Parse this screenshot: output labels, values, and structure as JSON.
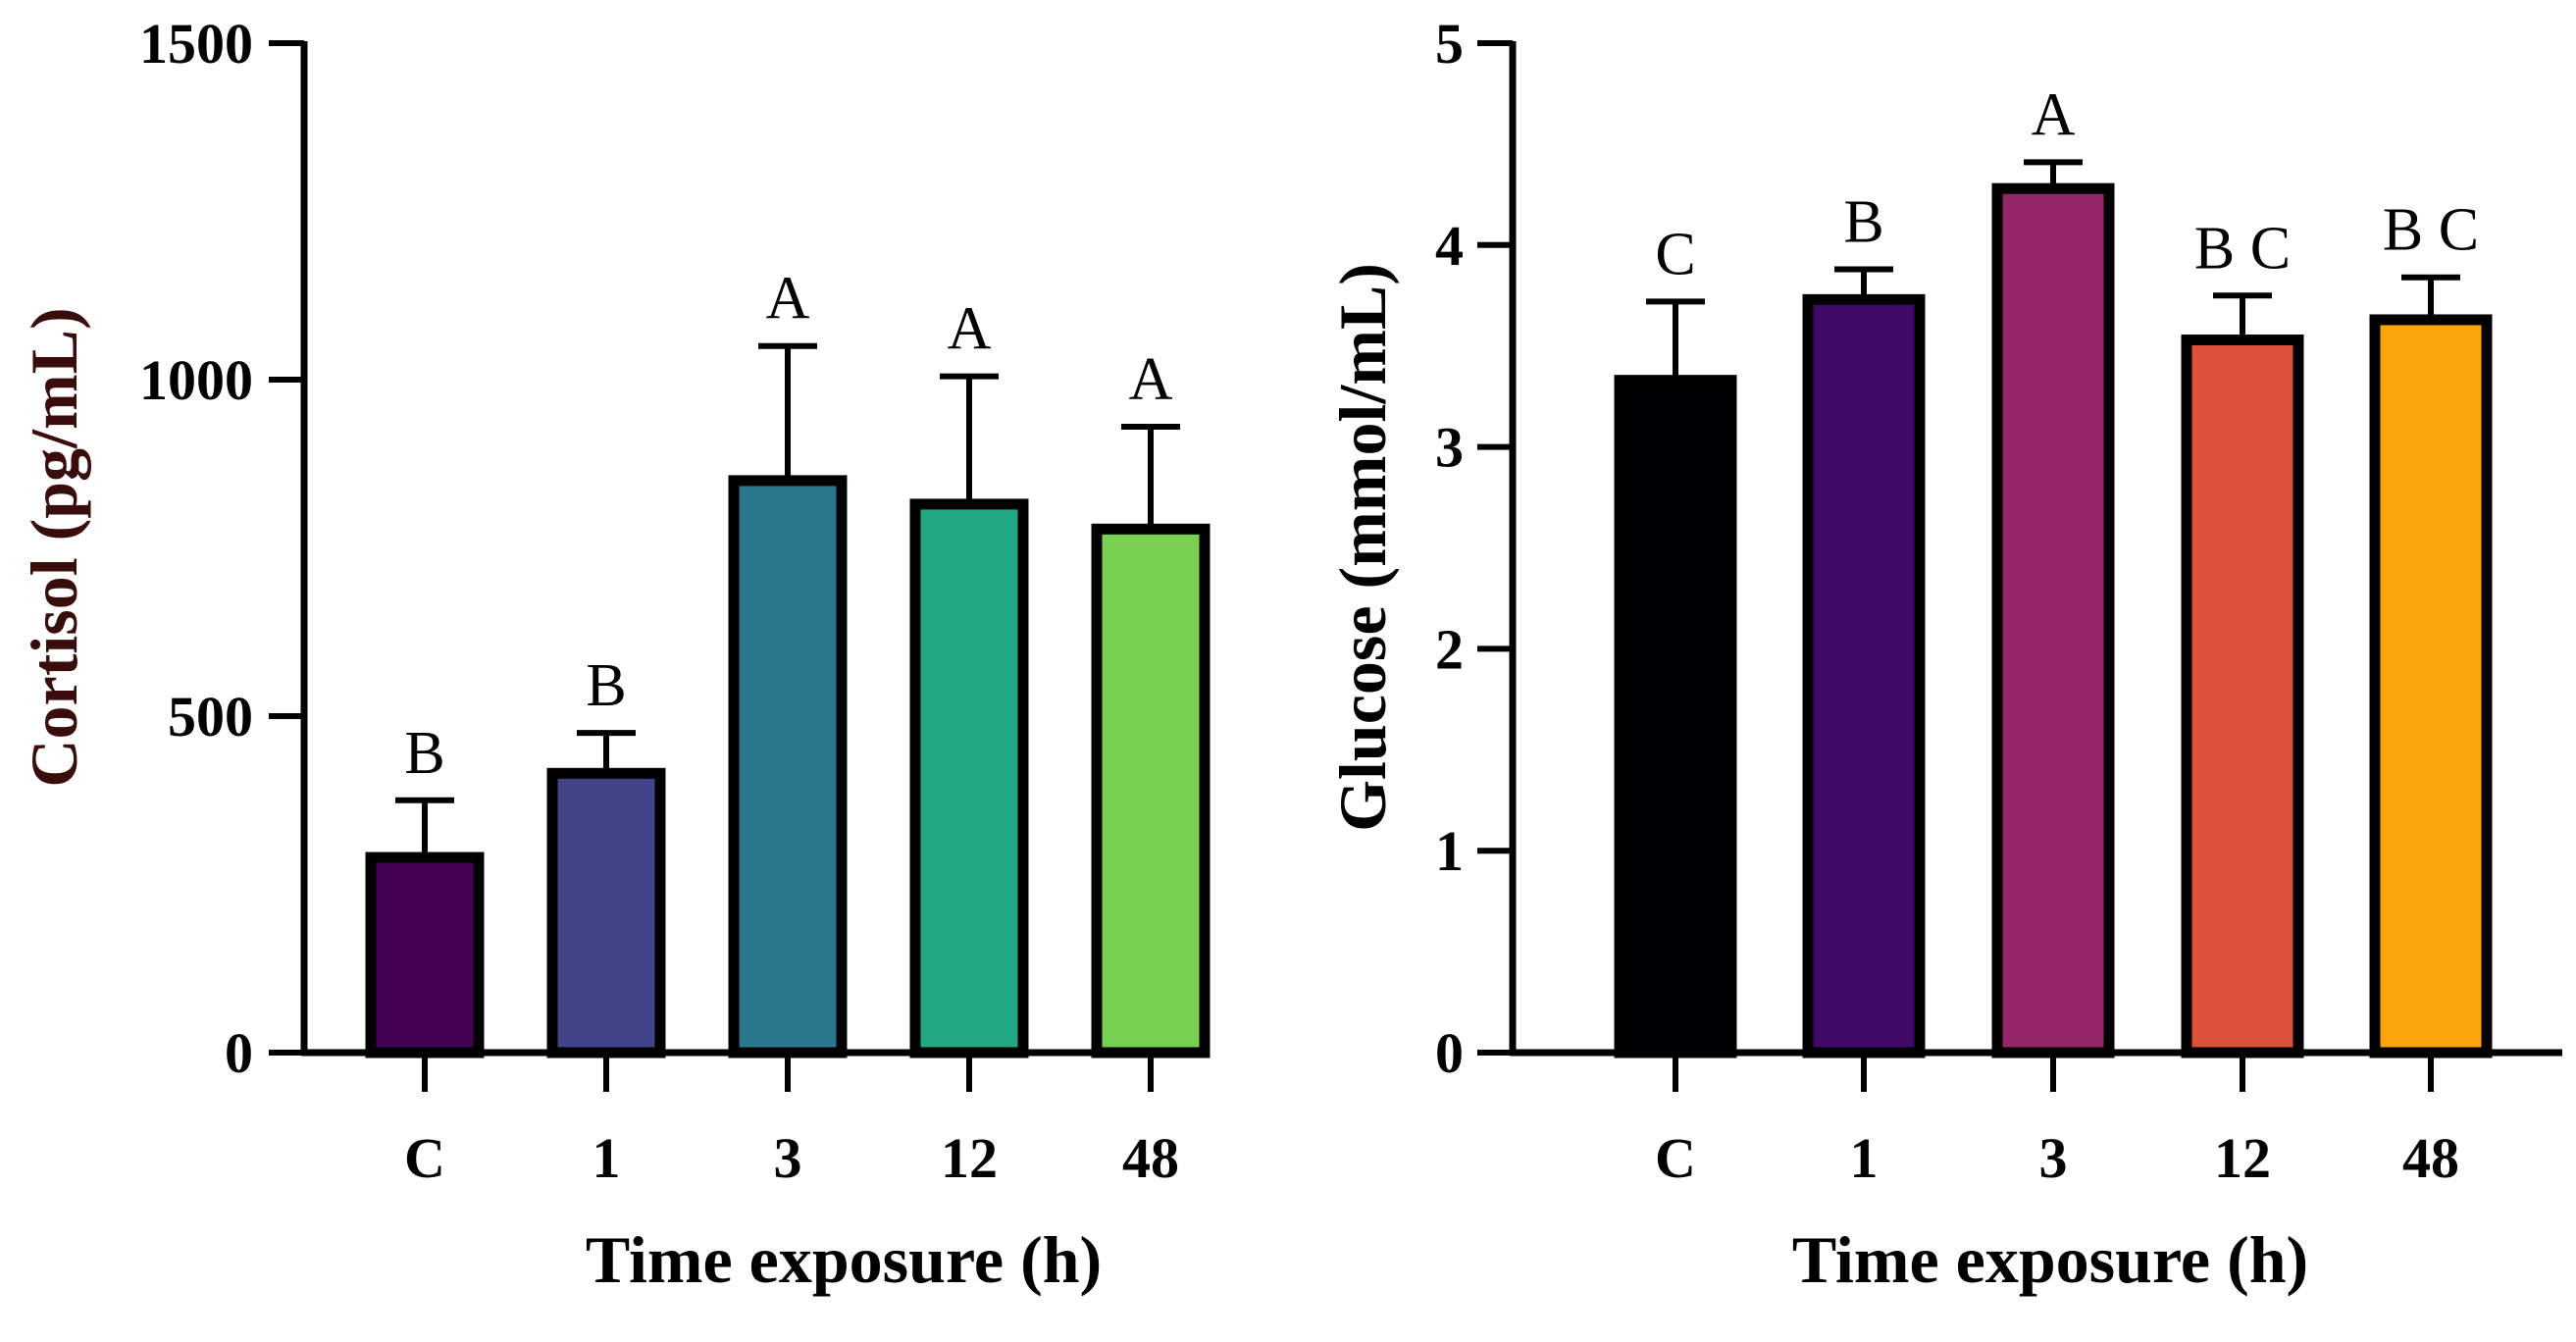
{
  "chart_data": [
    {
      "type": "bar",
      "title": "",
      "xlabel": "Time exposure (h)",
      "ylabel": "Cortisol (pg/mL)",
      "ylabel_color": "#3a0d0d",
      "categories": [
        "C",
        "1",
        "3",
        "12",
        "48"
      ],
      "values": [
        290,
        415,
        850,
        815,
        778
      ],
      "error_upper": [
        375,
        475,
        1050,
        1005,
        930
      ],
      "significance": [
        "B",
        "B",
        "A",
        "A",
        "A"
      ],
      "colors": [
        "#440154",
        "#414487",
        "#2a788e",
        "#22a884",
        "#7ad151"
      ],
      "ylim": [
        0,
        1500
      ],
      "yticks": [
        0,
        500,
        1000,
        1500
      ]
    },
    {
      "type": "bar",
      "title": "",
      "xlabel": "Time exposure (h)",
      "ylabel": "Glucose (mmol/mL)",
      "ylabel_color": "#000000",
      "categories": [
        "C",
        "1",
        "3",
        "12",
        "48"
      ],
      "values": [
        3.33,
        3.73,
        4.28,
        3.53,
        3.63
      ],
      "error_upper": [
        3.72,
        3.88,
        4.41,
        3.75,
        3.84
      ],
      "significance": [
        "C",
        "B",
        "A",
        "B C",
        "B C"
      ],
      "colors": [
        "#000004",
        "#420a68",
        "#932667",
        "#dd513a",
        "#fca50a"
      ],
      "ylim": [
        0,
        5
      ],
      "yticks": [
        0,
        1,
        2,
        3,
        4,
        5
      ]
    }
  ]
}
